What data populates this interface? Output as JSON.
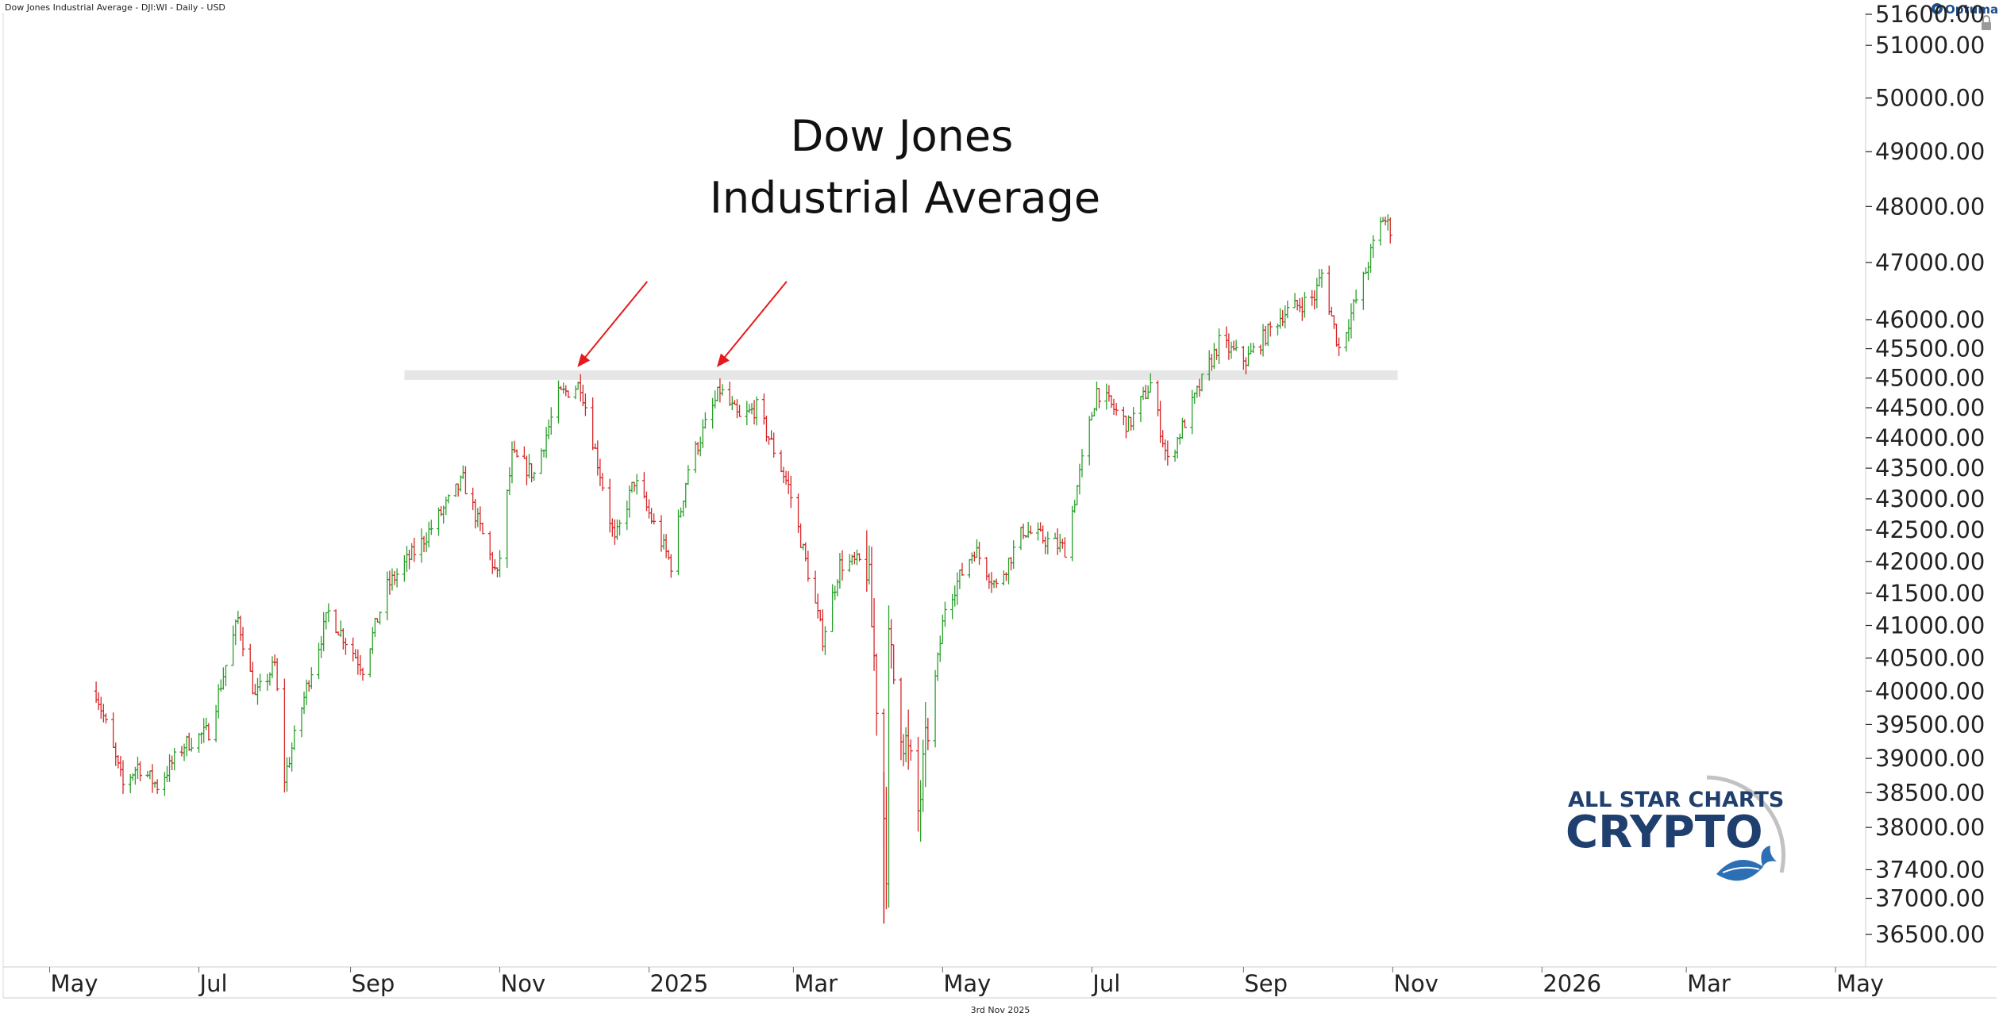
{
  "header": {
    "instrument": "Dow Jones Industrial Average - DJI:WI - Daily - USD",
    "vendor": "Optuma"
  },
  "footer": {
    "date": "3rd Nov 2025"
  },
  "watermark": {
    "line1": "ALL STAR CHARTS",
    "line2": "CRYPTO"
  },
  "colors": {
    "up": "#2ca02c",
    "down": "#d62728",
    "arrow": "#e41a1c",
    "band": "#e6e6e6",
    "brand": "#1f3f6e"
  },
  "chart_data": {
    "type": "ohlc",
    "title": "Dow Jones Industrial Average",
    "title_lines": [
      "Dow Jones",
      "Industrial Average"
    ],
    "yscale": "log",
    "ylim": [
      36100,
      51600
    ],
    "y_ticks": [
      "51600.00",
      "51000.00",
      "50000.00",
      "49000.00",
      "48000.00",
      "47000.00",
      "46000.00",
      "45500.00",
      "45000.00",
      "44500.00",
      "44000.00",
      "43500.00",
      "43000.00",
      "42500.00",
      "42000.00",
      "41500.00",
      "41000.00",
      "40500.00",
      "40000.00",
      "39500.00",
      "39000.00",
      "38500.00",
      "38000.00",
      "37400.00",
      "37000.00",
      "36500.00"
    ],
    "x_ticks": [
      "May",
      "Jul",
      "Sep",
      "Nov",
      "2025",
      "Mar",
      "May",
      "Jul",
      "Sep",
      "Nov",
      "2026",
      "Mar",
      "May"
    ],
    "resistance_band": {
      "value": 45050,
      "from": "2024-09-23",
      "to": "2025-11-03"
    },
    "annotations": [
      {
        "type": "arrow",
        "target": "2024-12-04 peak",
        "value": 45000
      },
      {
        "type": "arrow",
        "target": "2025-01-30 peak",
        "value": 45000
      }
    ],
    "anchors": [
      [
        "2024-05-20",
        40000
      ],
      [
        "2024-05-31",
        38600
      ],
      [
        "2024-06-06",
        38900
      ],
      [
        "2024-06-14",
        38600
      ],
      [
        "2024-06-25",
        39200
      ],
      [
        "2024-07-05",
        39400
      ],
      [
        "2024-07-17",
        41100
      ],
      [
        "2024-07-24",
        39900
      ],
      [
        "2024-08-01",
        40400
      ],
      [
        "2024-08-05",
        38700
      ],
      [
        "2024-08-15",
        40200
      ],
      [
        "2024-08-23",
        41200
      ],
      [
        "2024-09-06",
        40350
      ],
      [
        "2024-09-16",
        41600
      ],
      [
        "2024-09-30",
        42300
      ],
      [
        "2024-10-17",
        43300
      ],
      [
        "2024-10-31",
        41750
      ],
      [
        "2024-11-06",
        43700
      ],
      [
        "2024-11-15",
        43400
      ],
      [
        "2024-11-25",
        44700
      ],
      [
        "2024-12-04",
        44900
      ],
      [
        "2024-12-18",
        42300
      ],
      [
        "2024-12-26",
        43300
      ],
      [
        "2025-01-10",
        41950
      ],
      [
        "2025-01-17",
        43500
      ],
      [
        "2025-01-30",
        44800
      ],
      [
        "2025-02-07",
        44300
      ],
      [
        "2025-02-14",
        44500
      ],
      [
        "2025-02-27",
        43200
      ],
      [
        "2025-03-13",
        40800
      ],
      [
        "2025-03-20",
        41950
      ],
      [
        "2025-03-31",
        42000
      ],
      [
        "2025-04-03",
        40500
      ],
      [
        "2025-04-08",
        37600
      ],
      [
        "2025-04-09",
        40600
      ],
      [
        "2025-04-21",
        38200
      ],
      [
        "2025-05-02",
        41300
      ],
      [
        "2025-05-14",
        42200
      ],
      [
        "2025-05-23",
        41600
      ],
      [
        "2025-06-03",
        42500
      ],
      [
        "2025-06-20",
        42200
      ],
      [
        "2025-07-03",
        44800
      ],
      [
        "2025-07-16",
        44200
      ],
      [
        "2025-07-25",
        44900
      ],
      [
        "2025-08-01",
        43600
      ],
      [
        "2025-08-22",
        45600
      ],
      [
        "2025-09-02",
        45300
      ],
      [
        "2025-09-17",
        46100
      ],
      [
        "2025-09-30",
        46400
      ],
      [
        "2025-10-03",
        46800
      ],
      [
        "2025-10-10",
        45500
      ],
      [
        "2025-10-20",
        46700
      ],
      [
        "2025-10-24",
        47300
      ],
      [
        "2025-10-28",
        47800
      ],
      [
        "2025-10-31",
        47600
      ]
    ]
  }
}
